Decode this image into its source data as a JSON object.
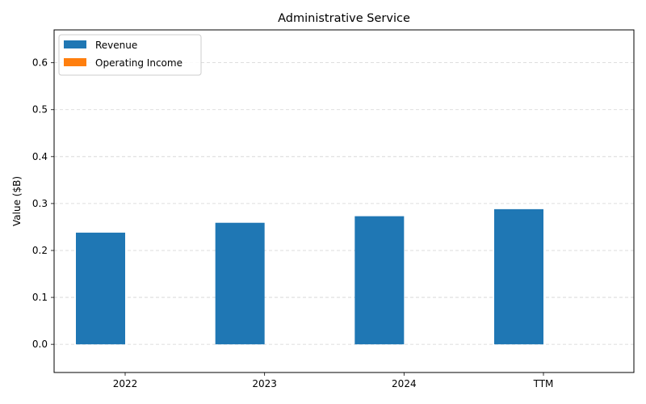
{
  "chart_data": {
    "type": "bar",
    "title": "Administrative Service",
    "xlabel": "",
    "ylabel": "Value ($B)",
    "categories": [
      "2022",
      "2023",
      "2024",
      "TTM"
    ],
    "series": [
      {
        "name": "Revenue",
        "values": [
          0.238,
          0.259,
          0.273,
          0.288
        ],
        "color": "#1f77b4"
      },
      {
        "name": "Operating Income",
        "values": [
          0,
          0,
          0,
          0
        ],
        "color": "#ff7f0e"
      }
    ],
    "ylim": [
      -0.06,
      0.67
    ],
    "yticks": [
      "0.0",
      "0.1",
      "0.2",
      "0.3",
      "0.4",
      "0.5",
      "0.6"
    ],
    "grid": "y-dashed",
    "legend_position": "top-left"
  }
}
